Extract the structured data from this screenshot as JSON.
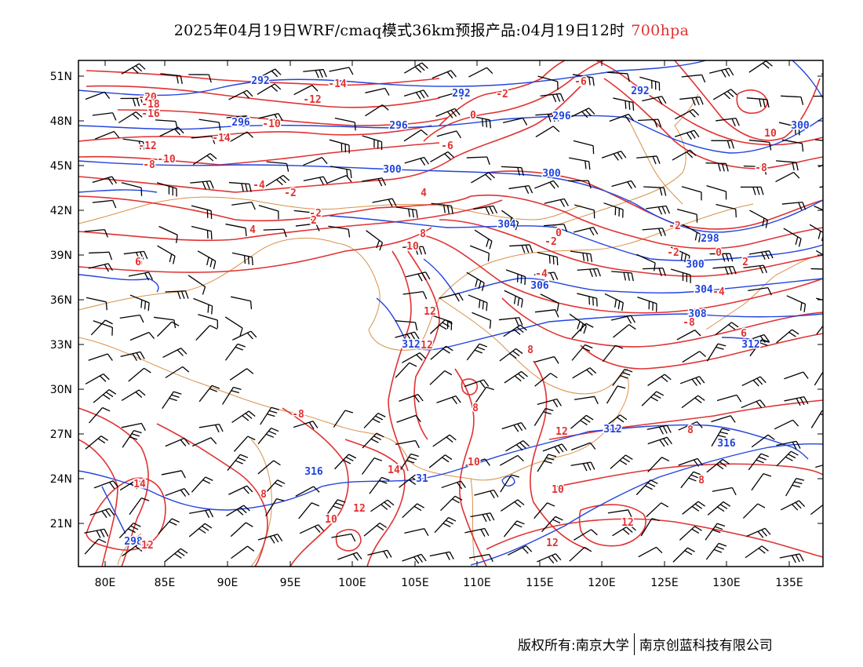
{
  "title": {
    "main": "2025年04月19日WRF/cmaq模式36km预报产品:04月19日12时",
    "level": "700hpa"
  },
  "axes": {
    "lat_labels": [
      "51N",
      "48N",
      "45N",
      "42N",
      "39N",
      "36N",
      "33N",
      "30N",
      "27N",
      "24N",
      "21N"
    ],
    "lon_labels": [
      "80E",
      "85E",
      "90E",
      "95E",
      "100E",
      "105E",
      "110E",
      "115E",
      "120E",
      "125E",
      "130E",
      "135E"
    ]
  },
  "colors": {
    "height_contour": "#2244dd",
    "temp_contour": "#e03232",
    "border": "#d9914a",
    "wind_barb": "#000000",
    "frame": "#000000"
  },
  "contour_labels": {
    "height": [
      "292",
      "292",
      "292",
      "296",
      "296",
      "296",
      "298",
      "300",
      "300",
      "300",
      "300",
      "304",
      "304",
      "306",
      "308",
      "312",
      "312",
      "312",
      "316",
      "316",
      "31",
      "298"
    ],
    "temperature": [
      "-20",
      "-18",
      "-16",
      "-14",
      "-14",
      "-12",
      "-12",
      "-10",
      "-10",
      "-8",
      "-8",
      "-6",
      "-4",
      "-2",
      "-2",
      "-2",
      "0",
      "-2",
      "0",
      "0",
      "-2",
      "2",
      "4",
      "-4",
      "2",
      "4",
      "6",
      "8",
      "10",
      "10",
      "12",
      "-8",
      "-6",
      "-8",
      "-2",
      "-4",
      "6",
      "8",
      "8",
      "12",
      "8",
      "8",
      "6",
      "8",
      "10",
      "10",
      "14",
      "12",
      "14",
      "10",
      "10",
      "12",
      "12",
      "12",
      "10",
      "14",
      "12",
      "6"
    ]
  },
  "footer": {
    "left": "版权所有:南京大学",
    "right": "南京创蓝科技有限公司"
  }
}
